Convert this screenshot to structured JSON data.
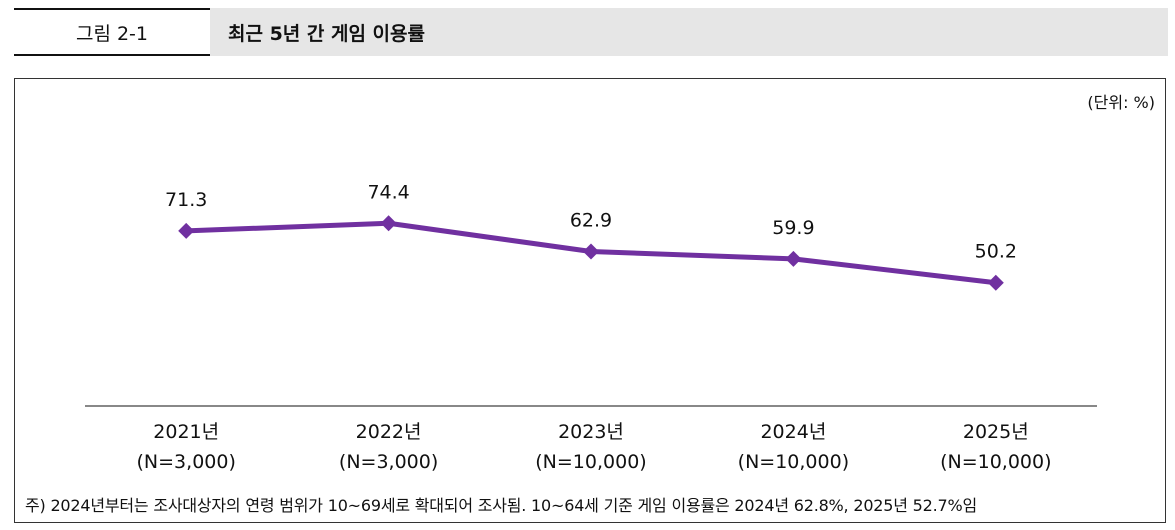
{
  "figure": {
    "label": "그림 2-1",
    "title": "최근 5년 간 게임 이용률"
  },
  "unit_label": "(단위: %)",
  "note": "주) 2024년부터는 조사대상자의 연령 범위가 10~69세로 확대되어 조사됨. 10~64세 기준 게임 이용률은 2024년 62.8%, 2025년 52.7%임",
  "colors": {
    "line": "#7030a0",
    "axis": "#888888"
  },
  "chart_data": {
    "type": "line",
    "categories": [
      "2021년",
      "2022년",
      "2023년",
      "2024년",
      "2025년"
    ],
    "category_sublabels": [
      "(N=3,000)",
      "(N=3,000)",
      "(N=10,000)",
      "(N=10,000)",
      "(N=10,000)"
    ],
    "series": [
      {
        "values": [
          71.3,
          74.4,
          62.9,
          59.9,
          50.2
        ]
      }
    ],
    "data_labels": [
      "71.3",
      "74.4",
      "62.9",
      "59.9",
      "50.2"
    ],
    "title": "",
    "xlabel": "",
    "ylabel": "",
    "ylim": [
      0,
      125
    ],
    "grid": false,
    "legend": "none"
  }
}
